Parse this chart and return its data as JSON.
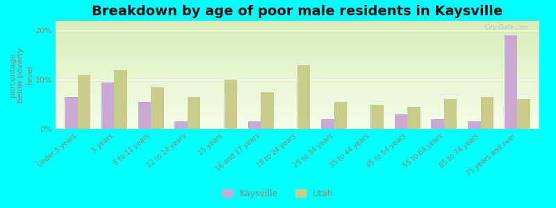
{
  "title": "Breakdown by age of poor male residents in Kaysville",
  "categories": [
    "Under 5 years",
    "5 years",
    "6 to 11 years",
    "12 to 14 years",
    "15 years",
    "16 and 17 years",
    "18 to 24 years",
    "25 to 34 years",
    "35 to 44 years",
    "45 to 54 years",
    "55 to 64 years",
    "65 to 74 years",
    "75 years and over"
  ],
  "kaysville_values": [
    6.5,
    9.5,
    5.5,
    1.5,
    0.0,
    1.5,
    0.0,
    2.0,
    0.0,
    3.0,
    2.0,
    1.5,
    19.0
  ],
  "utah_values": [
    11.0,
    12.0,
    8.5,
    6.5,
    10.0,
    7.5,
    13.0,
    5.5,
    5.0,
    4.5,
    6.0,
    6.5,
    6.0
  ],
  "kaysville_color": "#c9a8d4",
  "utah_color": "#c8cc8a",
  "background_color": "#00ffff",
  "plot_bg_top": "#d8edb8",
  "plot_bg_bottom": "#f5fde8",
  "ylabel": "percentage\nbelow poverty\nlevel",
  "ylim": [
    0,
    22
  ],
  "yticks": [
    0,
    10,
    20
  ],
  "ytick_labels": [
    "0%",
    "10%",
    "20%"
  ],
  "bar_width": 0.35,
  "title_fontsize": 14,
  "axis_label_fontsize": 8,
  "tick_label_fontsize": 7,
  "legend_fontsize": 9
}
